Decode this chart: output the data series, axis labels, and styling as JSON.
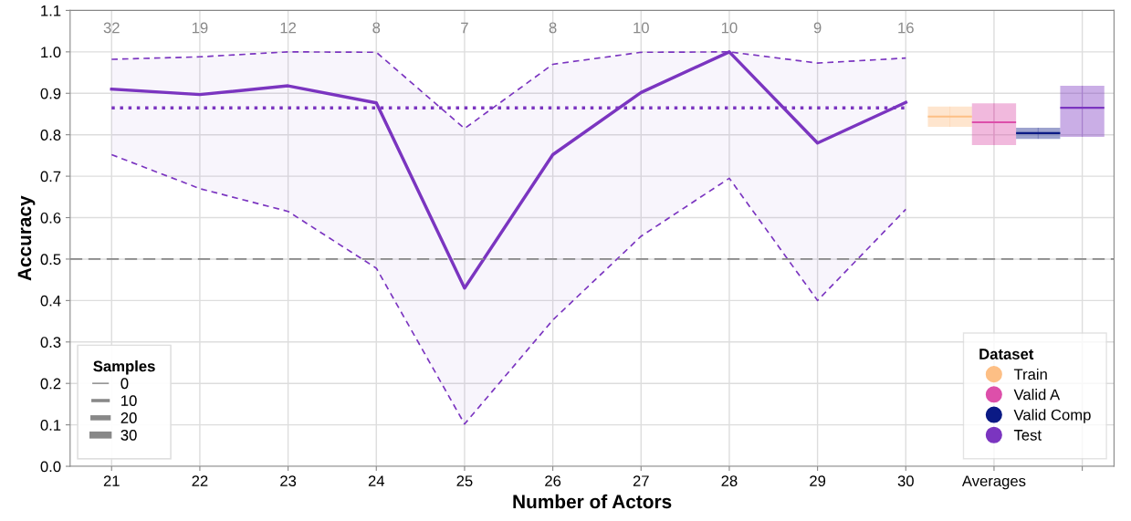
{
  "chart_data": {
    "type": "line",
    "xlabel": "Number of Actors",
    "ylabel": "Accuracy",
    "xlim": [
      20.53,
      32.36
    ],
    "xticks": [
      21,
      22,
      23,
      24,
      25,
      26,
      27,
      28,
      29,
      30,
      {
        "value": 31,
        "label": "Averages"
      },
      {
        "value": 32,
        "label": null
      }
    ],
    "ylim": [
      0,
      1.1
    ],
    "yticks": [
      {
        "value": 0,
        "label": "0.0"
      },
      0.1,
      0.2,
      0.3,
      0.4,
      0.5,
      0.6,
      0.7,
      0.8,
      0.9,
      {
        "value": 1.0,
        "label": "1.0"
      },
      1.1
    ],
    "grid": true,
    "legend": "bottom right",
    "legend_title": [
      "Dataset",
      "Samples"
    ],
    "line_style": "solid",
    "marker": "none",
    "annotations": [
      "32",
      "19",
      "12",
      "8",
      "7",
      "8",
      "10",
      "10",
      "9",
      "16",
      "0",
      "10",
      "20",
      "30"
    ],
    "series": [
      {
        "name": "Train",
        "type": "box",
        "color": "#fdbf85",
        "x": [
          30.5
        ],
        "boxes": [
          {
            "low": 0.819,
            "q1": 0.819,
            "median": 0.844,
            "q3": 0.868,
            "high": 0.868
          }
        ]
      },
      {
        "name": "Valid A",
        "type": "box",
        "color": "#dd4faa",
        "x": [
          31
        ],
        "boxes": [
          {
            "low": 0.775,
            "q1": 0.775,
            "median": 0.83,
            "q3": 0.876,
            "high": 0.876
          }
        ]
      },
      {
        "name": "Valid Comp",
        "type": "box",
        "color": "#0b1a85",
        "x": [
          31.5
        ],
        "boxes": [
          {
            "low": 0.79,
            "q1": 0.79,
            "median": 0.804,
            "q3": 0.817,
            "high": 0.817
          }
        ]
      },
      {
        "name": "Test",
        "color": "#7b35c0",
        "x": [
          21,
          22,
          23,
          24,
          25,
          26,
          27,
          28,
          29,
          30
        ],
        "values": [
          0.91,
          0.897,
          0.918,
          0.877,
          0.43,
          0.752,
          0.902,
          1.0,
          0.78,
          0.878
        ],
        "lower": [
          0.752,
          0.67,
          0.615,
          0.478,
          0.102,
          0.353,
          0.555,
          0.695,
          0.4,
          0.62
        ],
        "upper": [
          0.982,
          0.988,
          1.0,
          0.999,
          0.815,
          0.97,
          0.999,
          1.0,
          0.973,
          0.985
        ]
      },
      {
        "type": "line",
        "line_style": "dashed",
        "color": "#7b35c0",
        "x": [
          21,
          22,
          23,
          24,
          25,
          26,
          27,
          28,
          29,
          30
        ],
        "values": [
          0.752,
          0.67,
          0.615,
          0.478,
          0.102,
          0.353,
          0.555,
          0.695,
          0.4,
          0.62
        ]
      },
      {
        "type": "line",
        "line_style": "dashed",
        "color": "#7b35c0",
        "x": [
          21,
          22,
          23,
          24,
          25,
          26,
          27,
          28,
          29,
          30
        ],
        "values": [
          0.982,
          0.988,
          1.0,
          0.999,
          0.815,
          0.97,
          0.999,
          1.0,
          0.973,
          0.985
        ]
      },
      {
        "type": "box",
        "color": "#7b35c0",
        "x": [
          32
        ],
        "boxes": [
          {
            "low": 0.795,
            "q1": 0.795,
            "median": 0.865,
            "q3": 0.918,
            "high": 0.918
          }
        ]
      }
    ],
    "ref_lines": [
      {
        "axis": "y",
        "value": 0.5,
        "color": "#888888",
        "line_style": "dashed"
      },
      {
        "axis": "y",
        "value": 0.865,
        "color": "#7b35c0",
        "line_style": "dotted"
      }
    ]
  }
}
